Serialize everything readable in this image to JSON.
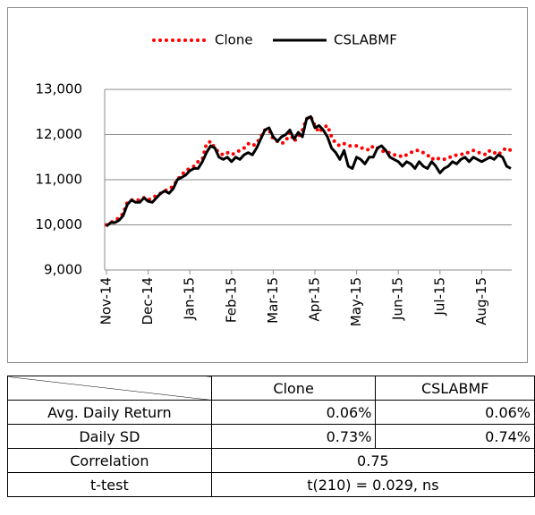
{
  "chart_data": {
    "type": "line",
    "categories": [
      "Nov-14",
      null,
      null,
      null,
      null,
      null,
      null,
      null,
      null,
      null,
      "Dec-14",
      null,
      null,
      null,
      null,
      null,
      null,
      null,
      null,
      null,
      "Jan-15",
      null,
      null,
      null,
      null,
      null,
      null,
      null,
      null,
      null,
      "Feb-15",
      null,
      null,
      null,
      null,
      null,
      null,
      null,
      null,
      null,
      "Mar-15",
      null,
      null,
      null,
      null,
      null,
      null,
      null,
      null,
      null,
      "Apr-15",
      null,
      null,
      null,
      null,
      null,
      null,
      null,
      null,
      null,
      "May-15",
      null,
      null,
      null,
      null,
      null,
      null,
      null,
      null,
      null,
      "Jun-15",
      null,
      null,
      null,
      null,
      null,
      null,
      null,
      null,
      null,
      "Jul-15",
      null,
      null,
      null,
      null,
      null,
      null,
      null,
      null,
      null,
      "Aug-15",
      null,
      null,
      null,
      null,
      null,
      null,
      null
    ],
    "series": [
      {
        "name": "Clone",
        "color": "#ff0000",
        "style": "dotted",
        "values": [
          10000,
          10050,
          10100,
          10150,
          10250,
          10500,
          10550,
          10550,
          10550,
          10600,
          10550,
          10600,
          10650,
          10700,
          10750,
          10800,
          10850,
          11000,
          11100,
          11200,
          11250,
          11300,
          11400,
          11450,
          11800,
          11850,
          11700,
          11600,
          11550,
          11600,
          11550,
          11600,
          11650,
          11700,
          11800,
          11750,
          11800,
          11950,
          12100,
          12100,
          11900,
          11850,
          11800,
          11850,
          12050,
          11850,
          11950,
          12100,
          12350,
          12400,
          12200,
          12050,
          12150,
          12200,
          11950,
          11800,
          11750,
          11800,
          11750,
          11750,
          11750,
          11700,
          11700,
          11650,
          11750,
          11700,
          11650,
          11600,
          11600,
          11550,
          11550,
          11500,
          11550,
          11600,
          11650,
          11650,
          11600,
          11550,
          11450,
          11500,
          11450,
          11450,
          11500,
          11500,
          11550,
          11550,
          11600,
          11600,
          11650,
          11600,
          11600,
          11550,
          11650,
          11600,
          11550,
          11650,
          11700,
          11650
        ]
      },
      {
        "name": "CSLABMF",
        "color": "#000000",
        "style": "solid",
        "values": [
          9970,
          10050,
          10050,
          10100,
          10200,
          10450,
          10550,
          10500,
          10500,
          10600,
          10520,
          10500,
          10600,
          10700,
          10750,
          10700,
          10800,
          11000,
          11050,
          11100,
          11200,
          11250,
          11250,
          11400,
          11600,
          11750,
          11700,
          11500,
          11450,
          11500,
          11400,
          11500,
          11450,
          11550,
          11600,
          11550,
          11700,
          11900,
          12100,
          12150,
          11950,
          11850,
          11950,
          12000,
          12100,
          11900,
          12050,
          11950,
          12350,
          12400,
          12150,
          12200,
          12100,
          11950,
          11700,
          11600,
          11450,
          11650,
          11300,
          11250,
          11500,
          11450,
          11350,
          11500,
          11500,
          11700,
          11750,
          11650,
          11500,
          11450,
          11400,
          11300,
          11400,
          11350,
          11250,
          11400,
          11300,
          11250,
          11400,
          11300,
          11150,
          11250,
          11300,
          11400,
          11350,
          11450,
          11500,
          11400,
          11500,
          11450,
          11400,
          11450,
          11500,
          11450,
          11550,
          11500,
          11300,
          11250
        ]
      }
    ],
    "ylim": [
      9000,
      13000
    ],
    "yticks": [
      {
        "value": 9000,
        "label": "9,000"
      },
      {
        "value": 10000,
        "label": "10,000"
      },
      {
        "value": 11000,
        "label": "11,000"
      },
      {
        "value": 12000,
        "label": "12,000"
      },
      {
        "value": 13000,
        "label": "13,000"
      }
    ],
    "grid": true,
    "legend": "top"
  },
  "table": {
    "header": [
      "Clone",
      "CSLABMF"
    ],
    "rows": [
      [
        "Avg. Daily Return",
        "0.06%",
        "0.06%"
      ],
      [
        "Daily SD",
        "0.73%",
        "0.74%"
      ],
      [
        "Correlation",
        "0.75"
      ],
      [
        "t-test",
        "t(210) = 0.029, ns"
      ]
    ]
  }
}
